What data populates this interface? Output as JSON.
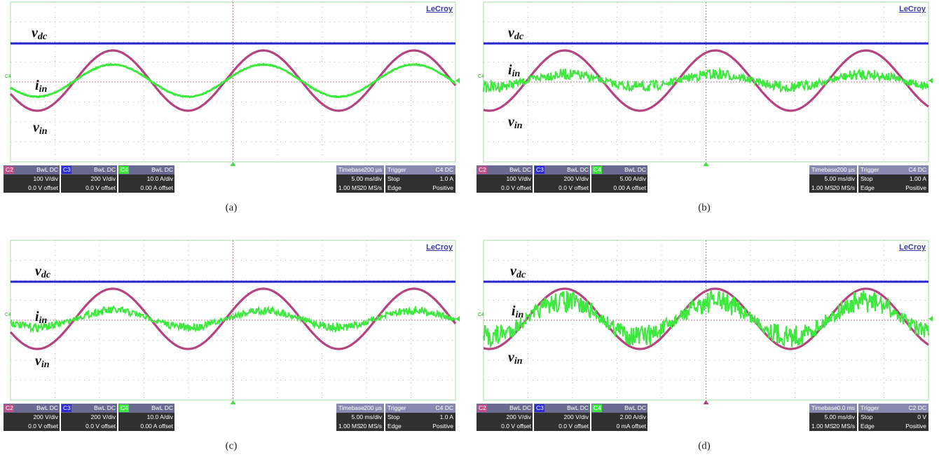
{
  "panels": [
    {
      "caption": "(a)",
      "logo": "LeCroy",
      "marker": "C4",
      "labels": {
        "vdc": {
          "main": "v",
          "sub": "dc"
        },
        "iin": {
          "main": "i",
          "sub": "in"
        },
        "vin": {
          "main": "v",
          "sub": "in"
        }
      },
      "channels": [
        {
          "tag": "C2",
          "coupling": "BwL DC",
          "scale": "100 V/div",
          "offset": "0.0 V offset"
        },
        {
          "tag": "C3",
          "coupling": "BwL DC",
          "scale": "200 V/div",
          "offset": "0.0 V offset"
        },
        {
          "tag": "C4",
          "coupling": "BwL DC",
          "scale": "10.0 A/div",
          "offset": "0.00 A offset"
        }
      ],
      "timebase": {
        "title": "Timebase",
        "delay": "200 µs",
        "scale": "5.00 ms/div",
        "points": "1.00 MS",
        "rate": "20 MS/s"
      },
      "trigger": {
        "title": "Trigger",
        "source": "C4 DC",
        "mode": "Stop",
        "level": "1.0 A",
        "type": "Edge",
        "slope": "Positive"
      }
    },
    {
      "caption": "(b)",
      "logo": "LeCroy",
      "marker": "C4",
      "labels": {
        "vdc": {
          "main": "v",
          "sub": "dc"
        },
        "iin": {
          "main": "i",
          "sub": "in"
        },
        "vin": {
          "main": "v",
          "sub": "in"
        }
      },
      "channels": [
        {
          "tag": "C2",
          "coupling": "BwL DC",
          "scale": "100 V/div",
          "offset": "0.0 V offset"
        },
        {
          "tag": "C3",
          "coupling": "BwL DC",
          "scale": "200 V/div",
          "offset": "0.0 V offset"
        },
        {
          "tag": "C4",
          "coupling": "BwL DC",
          "scale": "5.00 A/div",
          "offset": "0.00 A offset"
        }
      ],
      "timebase": {
        "title": "Timebase",
        "delay": "200 µs",
        "scale": "5.00 ms/div",
        "points": "1.00 MS",
        "rate": "20 MS/s"
      },
      "trigger": {
        "title": "Trigger",
        "source": "C4 DC",
        "mode": "Stop",
        "level": "1.00 A",
        "type": "Edge",
        "slope": "Positive"
      }
    },
    {
      "caption": "(c)",
      "logo": "LeCroy",
      "marker": "C4",
      "labels": {
        "vdc": {
          "main": "v",
          "sub": "dc"
        },
        "iin": {
          "main": "i",
          "sub": "in"
        },
        "vin": {
          "main": "v",
          "sub": "in"
        }
      },
      "channels": [
        {
          "tag": "C2",
          "coupling": "BwL DC",
          "scale": "200 V/div",
          "offset": "0.0 V offset"
        },
        {
          "tag": "C3",
          "coupling": "BwL DC",
          "scale": "200 V/div",
          "offset": "0.0 V offset"
        },
        {
          "tag": "C4",
          "coupling": "BwL DC",
          "scale": "10.0 A/div",
          "offset": "0.00 A offset"
        }
      ],
      "timebase": {
        "title": "Timebase",
        "delay": "200 µs",
        "scale": "5.00 ms/div",
        "points": "1.00 MS",
        "rate": "20 MS/s"
      },
      "trigger": {
        "title": "Trigger",
        "source": "C4 DC",
        "mode": "Stop",
        "level": "1.0 A",
        "type": "Edge",
        "slope": "Positive"
      }
    },
    {
      "caption": "(d)",
      "logo": "LeCroy",
      "marker": "C4",
      "labels": {
        "vdc": {
          "main": "v",
          "sub": "dc"
        },
        "iin": {
          "main": "i",
          "sub": "in"
        },
        "vin": {
          "main": "v",
          "sub": "in"
        }
      },
      "channels": [
        {
          "tag": "C2",
          "coupling": "BwL DC",
          "scale": "200 V/div",
          "offset": "0.0 V offset"
        },
        {
          "tag": "C3",
          "coupling": "BwL DC",
          "scale": "200 V/div",
          "offset": "0.0 V offset"
        },
        {
          "tag": "C4",
          "coupling": "BwL DC",
          "scale": "2.00 A/div",
          "offset": "0 mA offset"
        }
      ],
      "timebase": {
        "title": "Timebase",
        "delay": "0.0 ms",
        "scale": "5.00 ms/div",
        "points": "1.00 MS",
        "rate": "20 MS/s"
      },
      "trigger": {
        "title": "Trigger",
        "source": "C2 DC",
        "mode": "Stop",
        "level": "0 V",
        "type": "Edge",
        "slope": "Positive"
      }
    }
  ]
}
